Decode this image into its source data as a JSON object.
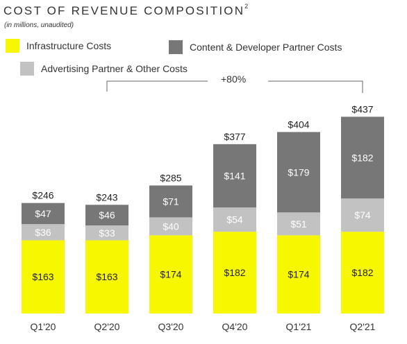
{
  "title": "COST OF REVENUE COMPOSITION",
  "title_superscript": "2",
  "subtitle": "(in millions, unaudited)",
  "legend": [
    {
      "label": "Infrastructure Costs",
      "color": "#f7f700"
    },
    {
      "label": "Content & Developer Partner Costs",
      "color": "#777777"
    },
    {
      "label": "Advertising Partner & Other Costs",
      "color": "#c2c2c2"
    }
  ],
  "growth_annotation": "+80%",
  "chart_data": {
    "type": "bar",
    "stacked": true,
    "categories": [
      "Q1'20",
      "Q2'20",
      "Q3'20",
      "Q4'20",
      "Q1'21",
      "Q2'21"
    ],
    "series": [
      {
        "name": "Infrastructure Costs",
        "values": [
          163,
          163,
          174,
          182,
          174,
          182
        ],
        "labels": [
          "$163",
          "$163",
          "$174",
          "$182",
          "$174",
          "$182"
        ],
        "color": "#f7f700",
        "label_color": "#222222"
      },
      {
        "name": "Advertising Partner & Other Costs",
        "values": [
          36,
          33,
          40,
          54,
          51,
          74
        ],
        "labels": [
          "$36",
          "$33",
          "$40",
          "$54",
          "$51",
          "$74"
        ],
        "color": "#c2c2c2",
        "label_color": "#ffffff"
      },
      {
        "name": "Content & Developer Partner Costs",
        "values": [
          47,
          46,
          71,
          141,
          179,
          182
        ],
        "labels": [
          "$47",
          "$46",
          "$71",
          "$141",
          "$179",
          "$182"
        ],
        "color": "#777777",
        "label_color": "#ffffff"
      }
    ],
    "totals": [
      246,
      243,
      285,
      377,
      404,
      437
    ],
    "total_labels": [
      "$246",
      "$243",
      "$285",
      "$377",
      "$404",
      "$437"
    ],
    "ylim": [
      0,
      437
    ],
    "grid": false,
    "legend_position": "top"
  }
}
